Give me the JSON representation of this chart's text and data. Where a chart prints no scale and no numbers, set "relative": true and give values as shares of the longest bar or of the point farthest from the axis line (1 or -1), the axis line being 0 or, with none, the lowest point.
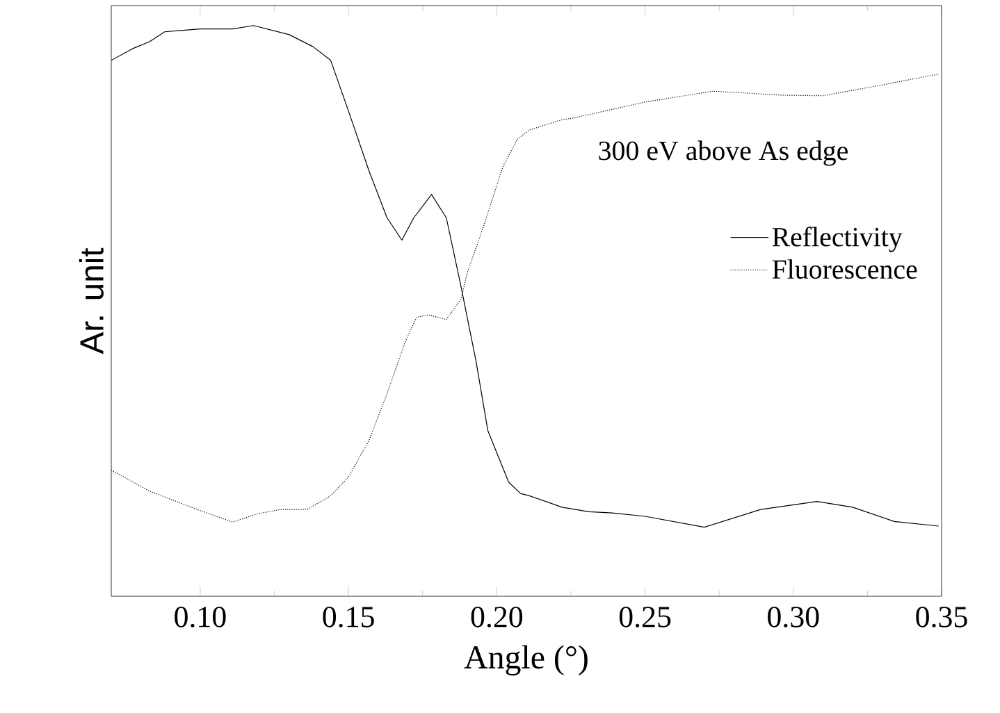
{
  "chart_data": {
    "type": "line",
    "relative": true,
    "xlabel": "Angle (°)",
    "ylabel": "Ar. unit",
    "xlim": [
      0.07,
      0.35
    ],
    "xticks": [
      {
        "value": 0.1,
        "label": "0.10"
      },
      {
        "value": 0.15,
        "label": "0.15"
      },
      {
        "value": 0.2,
        "label": "0.20"
      },
      {
        "value": 0.25,
        "label": "0.25"
      },
      {
        "value": 0.3,
        "label": "0.30"
      },
      {
        "value": 0.35,
        "label": "0.35"
      }
    ],
    "legend": "right",
    "grid": false,
    "series": [
      {
        "name": "Reflectivity",
        "color": "#000000",
        "line_style": "solid",
        "x": [
          0.07,
          0.077,
          0.083,
          0.088,
          0.1,
          0.111,
          0.118,
          0.13,
          0.138,
          0.144,
          0.15,
          0.157,
          0.163,
          0.168,
          0.172,
          0.178,
          0.183,
          0.188,
          0.193,
          0.197,
          0.204,
          0.208,
          0.211,
          0.222,
          0.231,
          0.239,
          0.25,
          0.27,
          0.289,
          0.308,
          0.32,
          0.334,
          0.349
        ],
        "values": [
          0.939,
          0.959,
          0.972,
          0.989,
          0.994,
          0.994,
          1.0,
          0.984,
          0.963,
          0.939,
          0.85,
          0.744,
          0.663,
          0.624,
          0.663,
          0.704,
          0.663,
          0.541,
          0.412,
          0.29,
          0.2,
          0.18,
          0.176,
          0.156,
          0.148,
          0.146,
          0.14,
          0.121,
          0.152,
          0.166,
          0.156,
          0.131,
          0.123
        ]
      },
      {
        "name": "Fluorescence",
        "color": "#000000",
        "line_style": "dotted",
        "x": [
          0.07,
          0.083,
          0.099,
          0.111,
          0.119,
          0.127,
          0.136,
          0.144,
          0.15,
          0.157,
          0.163,
          0.169,
          0.173,
          0.177,
          0.183,
          0.188,
          0.19,
          0.196,
          0.202,
          0.207,
          0.211,
          0.222,
          0.226,
          0.25,
          0.273,
          0.296,
          0.31,
          0.328,
          0.349
        ],
        "values": [
          0.221,
          0.184,
          0.152,
          0.13,
          0.144,
          0.152,
          0.152,
          0.176,
          0.209,
          0.274,
          0.355,
          0.444,
          0.489,
          0.493,
          0.485,
          0.521,
          0.566,
          0.655,
          0.752,
          0.801,
          0.817,
          0.835,
          0.838,
          0.866,
          0.885,
          0.878,
          0.877,
          0.894,
          0.915
        ]
      }
    ],
    "annotations": [
      "300 eV above As edge"
    ]
  }
}
